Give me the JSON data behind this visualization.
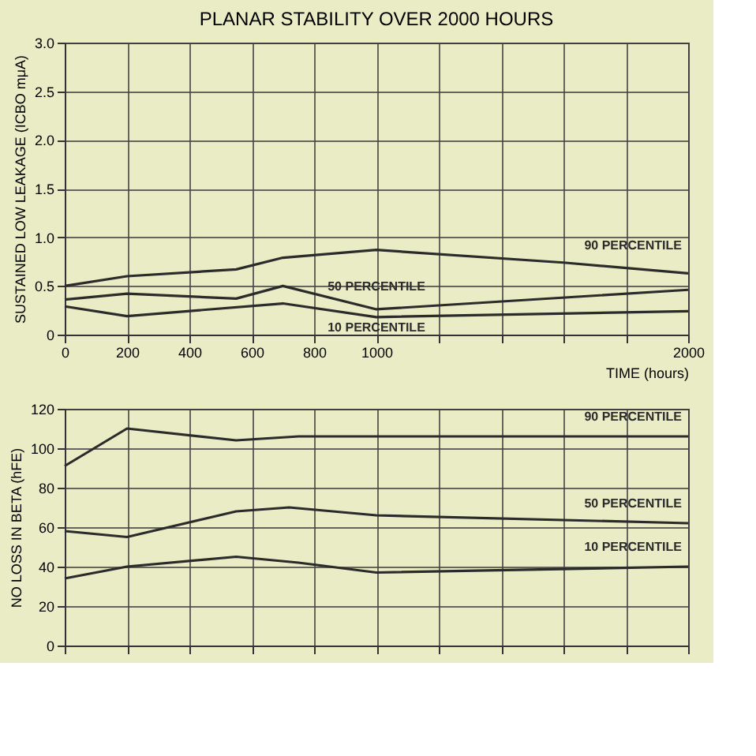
{
  "chart_data": [
    {
      "type": "line",
      "title": "PLANAR STABILITY OVER 2000 HOURS",
      "xlabel": "TIME (hours)",
      "ylabel": "SUSTAINED LOW LEAKAGE (ICBO mμA)",
      "xlim": [
        0,
        2000
      ],
      "xticks": [
        0,
        200,
        400,
        600,
        800,
        1000,
        {
          "value": 1200,
          "label": null
        },
        {
          "value": 1400,
          "label": null
        },
        {
          "value": 1600,
          "label": null
        },
        {
          "value": 1800,
          "label": null
        },
        2000
      ],
      "ylim": [
        0,
        3.0
      ],
      "yticks": [
        {
          "value": 0,
          "label": "0"
        },
        0.5,
        {
          "value": 1.0,
          "label": "1.0"
        },
        1.5,
        {
          "value": 2.0,
          "label": "2.0"
        },
        2.5,
        {
          "value": 3.0,
          "label": "3.0"
        }
      ],
      "grid": true,
      "legend": false,
      "marker": "none",
      "line_style": "solid",
      "series": [
        {
          "name": "90 PERCENTILE",
          "color": "#2b2b2b",
          "x": [
            0,
            200,
            550,
            700,
            1000,
            1600,
            2000
          ],
          "values": [
            0.5,
            0.6,
            0.67,
            0.79,
            0.87,
            0.74,
            0.63
          ]
        },
        {
          "name": "50 PERCENTILE",
          "color": "#2b2b2b",
          "x": [
            0,
            200,
            550,
            700,
            1000,
            2000
          ],
          "values": [
            0.36,
            0.42,
            0.37,
            0.5,
            0.26,
            0.46
          ]
        },
        {
          "name": "10 PERCENTILE",
          "color": "#2b2b2b",
          "x": [
            0,
            200,
            700,
            1000,
            2000
          ],
          "values": [
            0.29,
            0.19,
            0.32,
            0.18,
            0.24
          ]
        }
      ]
    },
    {
      "type": "line",
      "ylabel": "NO LOSS IN BETA (hFE)",
      "tick_labels": "y",
      "xlim": [
        0,
        2000
      ],
      "xticks": [
        0,
        200,
        400,
        600,
        800,
        1000,
        {
          "value": 1200,
          "label": null
        },
        {
          "value": 1400,
          "label": null
        },
        {
          "value": 1600,
          "label": null
        },
        {
          "value": 1800,
          "label": null
        },
        2000
      ],
      "ylim": [
        0,
        120
      ],
      "yticks": [
        0,
        20,
        40,
        60,
        80,
        100,
        120
      ],
      "grid": true,
      "legend": false,
      "marker": "none",
      "line_style": "solid",
      "series": [
        {
          "name": "90 PERCENTILE",
          "color": "#2b2b2b",
          "x": [
            0,
            200,
            550,
            750,
            2000
          ],
          "values": [
            91,
            110,
            104,
            106,
            106
          ]
        },
        {
          "name": "50 PERCENTILE",
          "color": "#2b2b2b",
          "x": [
            0,
            200,
            550,
            720,
            1000,
            2000
          ],
          "values": [
            58,
            55,
            68,
            70,
            66,
            62
          ]
        },
        {
          "name": "10 PERCENTILE",
          "color": "#2b2b2b",
          "x": [
            0,
            200,
            550,
            750,
            1000,
            2000
          ],
          "values": [
            34,
            40,
            45,
            42,
            37,
            40
          ]
        }
      ]
    }
  ]
}
